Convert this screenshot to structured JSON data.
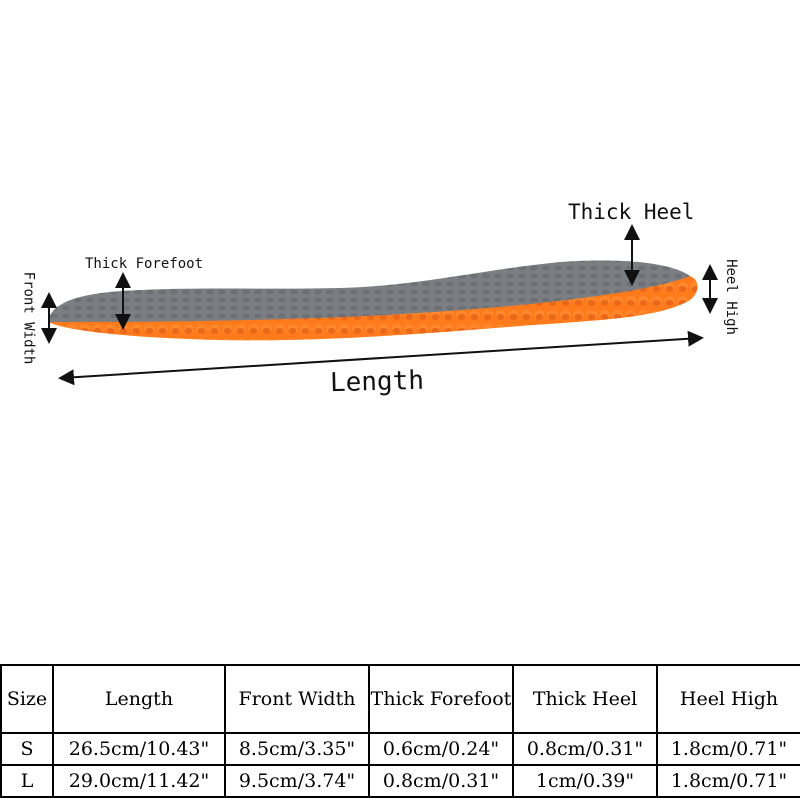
{
  "annotations": {
    "length": "Length",
    "thick_heel": "Thick Heel",
    "thick_forefoot": "Thick Forefoot",
    "front_width": "Front Width",
    "heel_high": "Heel High"
  },
  "colors": {
    "insole_top": "#7b7e82",
    "insole_base": "#ff7a1a",
    "arrow": "#111111"
  },
  "size_table": {
    "headers": [
      "Size",
      "Length",
      "Front Width",
      "Thick Forefoot",
      "Thick Heel",
      "Heel High"
    ],
    "rows": [
      [
        "S",
        "26.5cm/10.43\"",
        "8.5cm/3.35\"",
        "0.6cm/0.24\"",
        "0.8cm/0.31\"",
        "1.8cm/0.71\""
      ],
      [
        "L",
        "29.0cm/11.42\"",
        "9.5cm/3.74\"",
        "0.8cm/0.31\"",
        "1cm/0.39\"",
        "1.8cm/0.71\""
      ]
    ]
  }
}
